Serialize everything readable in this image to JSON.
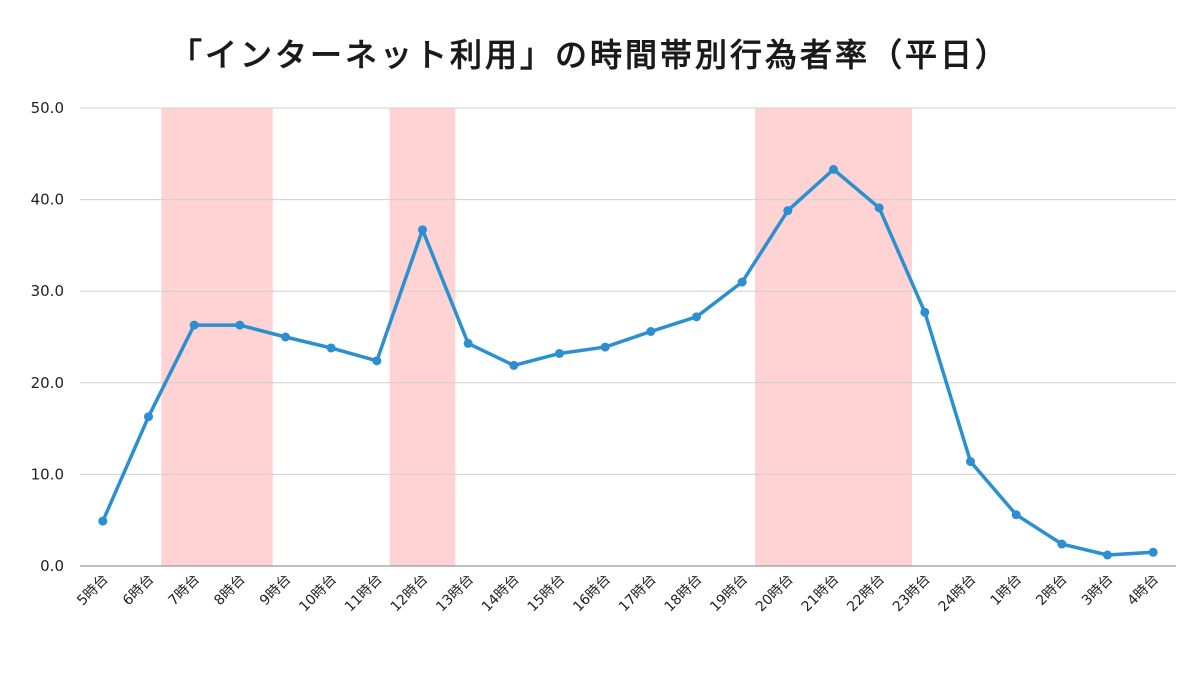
{
  "chart_data": {
    "type": "line",
    "title": "「インターネット利用」の時間帯別行為者率（平日）",
    "categories": [
      "5時台",
      "6時台",
      "7時台",
      "8時台",
      "9時台",
      "10時台",
      "11時台",
      "12時台",
      "13時台",
      "14時台",
      "15時台",
      "16時台",
      "17時台",
      "18時台",
      "19時台",
      "20時台",
      "21時台",
      "22時台",
      "23時台",
      "24時台",
      "1時台",
      "2時台",
      "3時台",
      "4時台"
    ],
    "values": [
      4.9,
      16.3,
      26.3,
      26.3,
      25.0,
      23.8,
      22.4,
      36.7,
      24.3,
      21.9,
      23.2,
      23.9,
      25.6,
      27.2,
      31.0,
      38.8,
      43.3,
      39.1,
      27.7,
      11.4,
      5.6,
      2.4,
      1.2,
      1.5
    ],
    "ylim": [
      0,
      50
    ],
    "yticks": [
      "0.0",
      "10.0",
      "20.0",
      "30.0",
      "40.0",
      "50.0"
    ],
    "grid": true,
    "highlight_ranges": [
      {
        "from": "7時台",
        "to": "8時台"
      },
      {
        "from": "12時台",
        "to": "12時台"
      },
      {
        "from": "20時台",
        "to": "22時台"
      }
    ],
    "colors": {
      "line": "#2b8fd0",
      "highlight": "#ffd3d3",
      "grid": "#d0d0d0",
      "axis": "#999999"
    }
  }
}
